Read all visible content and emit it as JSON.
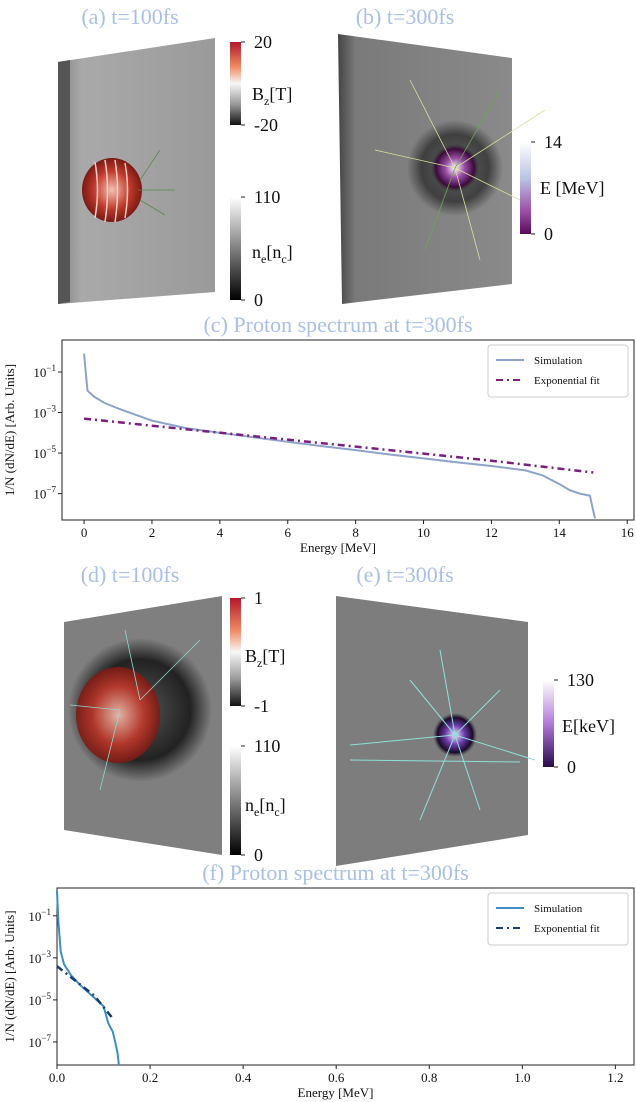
{
  "panels": [
    {
      "title": "(a) t=100fs",
      "colorbars": [
        {
          "label": [
            {
              "text": "B"
            },
            {
              "sub": "z"
            },
            {
              "text": "[T]"
            }
          ],
          "lim": [
            -20,
            20
          ],
          "ticks": [
            20,
            -20
          ]
        },
        {
          "label": [
            {
              "text": "n"
            },
            {
              "sub": "e"
            },
            {
              "text": "[n"
            },
            {
              "sub": "c"
            },
            {
              "text": "]"
            }
          ],
          "lim": [
            0,
            110
          ],
          "ticks": [
            110,
            0
          ]
        }
      ]
    },
    {
      "title": "(b) t=300fs",
      "colorbars": [
        {
          "label": [
            {
              "text": "E [MeV]"
            }
          ],
          "lim": [
            0,
            14
          ],
          "ticks": [
            14,
            0
          ]
        }
      ]
    },
    {
      "title": "(d) t=100fs",
      "colorbars": [
        {
          "label": [
            {
              "text": "B"
            },
            {
              "sub": "z"
            },
            {
              "text": "[T]"
            }
          ],
          "lim": [
            -1,
            1
          ],
          "ticks": [
            1,
            -1
          ]
        },
        {
          "label": [
            {
              "text": "n"
            },
            {
              "sub": "e"
            },
            {
              "text": "[n"
            },
            {
              "sub": "c"
            },
            {
              "text": "]"
            }
          ],
          "lim": [
            0,
            110
          ],
          "ticks": [
            110,
            0
          ]
        }
      ]
    },
    {
      "title": "(e) t=300fs",
      "colorbars": [
        {
          "label": [
            {
              "text": "E[keV]"
            }
          ],
          "lim": [
            0,
            130
          ],
          "ticks": [
            130,
            0
          ]
        }
      ]
    }
  ],
  "chart_data": [
    {
      "type": "line",
      "title": "(c) Proton spectrum at t=300fs",
      "xlabel": "Energy [MeV]",
      "ylabel": "1/N (dN/dE) [Arb. Units]",
      "yscale": "log",
      "legend": "upper right",
      "xlim": [
        -0.65,
        16.2
      ],
      "xticks": [
        0,
        2,
        4,
        6,
        8,
        10,
        12,
        14,
        16
      ],
      "ylim": [
        3.8,
        5e-09
      ],
      "yticks": [
        {
          "value": 0.1,
          "label": {
            "base": "10",
            "exp": "−1"
          }
        },
        {
          "value": 0.001,
          "label": {
            "base": "10",
            "exp": "−3"
          }
        },
        {
          "value": 1e-05,
          "label": {
            "base": "10",
            "exp": "−5"
          }
        },
        {
          "value": 1e-07,
          "label": {
            "base": "10",
            "exp": "−7"
          }
        }
      ],
      "series": [
        {
          "name": "Simulation",
          "color": "#8ea3c9",
          "linestyle": "solid",
          "x": [
            0,
            0.1,
            0.3,
            0.6,
            1,
            1.5,
            2,
            3,
            4,
            5,
            6,
            7,
            8,
            9,
            10,
            11,
            12,
            13,
            13.5,
            14,
            14.3,
            14.6,
            14.9,
            15.05
          ],
          "values": [
            0.8,
            0.012,
            0.006,
            0.003,
            0.0016,
            0.0008,
            0.0004,
            0.00017,
            0.0001,
            6e-05,
            3.6e-05,
            2.2e-05,
            1.4e-05,
            8.5e-06,
            5.5e-06,
            3.5e-06,
            2.3e-06,
            1.4e-06,
            8e-07,
            3e-07,
            1.5e-07,
            1e-07,
            8e-08,
            6e-09
          ]
        },
        {
          "name": "Exponential fit",
          "color": "#7b1f7e",
          "linestyle": "dashdot",
          "x": [
            0,
            3,
            6,
            9,
            12,
            15
          ],
          "values": [
            0.0005,
            0.00015,
            4.6e-05,
            1.4e-05,
            4.2e-06,
            1.1e-06
          ]
        }
      ]
    },
    {
      "type": "line",
      "title": "(f) Proton spectrum at t=300fs",
      "xlabel": "Energy [MeV]",
      "ylabel": "1/N (dN/dE) [Arb. Units]",
      "yscale": "log",
      "legend": "upper right",
      "xlim": [
        0,
        1.24
      ],
      "xticks": [
        {
          "value": 0,
          "label": "0.0"
        },
        0.2,
        0.4,
        0.6,
        0.8,
        {
          "value": 1,
          "label": "1.0"
        },
        1.2
      ],
      "ylim": [
        2.1,
        8e-09
      ],
      "yticks": [
        {
          "value": 0.1,
          "label": {
            "base": "10",
            "exp": "−1"
          }
        },
        {
          "value": 0.001,
          "label": {
            "base": "10",
            "exp": "−3"
          }
        },
        {
          "value": 1e-05,
          "label": {
            "base": "10",
            "exp": "−5"
          }
        },
        {
          "value": 1e-07,
          "label": {
            "base": "10",
            "exp": "−7"
          }
        }
      ],
      "series": [
        {
          "name": "Simulation",
          "color": "#3b8fc6",
          "linestyle": "solid",
          "x": [
            0,
            0.003,
            0.008,
            0.015,
            0.03,
            0.05,
            0.07,
            0.085,
            0.1,
            0.11,
            0.12,
            0.125,
            0.13,
            0.133
          ],
          "values": [
            1.5,
            0.05,
            0.002,
            0.0005,
            0.00015,
            5e-05,
            2e-05,
            1e-05,
            5e-06,
            8e-07,
            3e-07,
            1e-07,
            3e-08,
            8e-09
          ]
        },
        {
          "name": "Exponential fit",
          "color": "#1b3b6b",
          "linestyle": "dashdot",
          "x": [
            0,
            0.04,
            0.08,
            0.12
          ],
          "values": [
            0.0004,
            8e-05,
            1.6e-05,
            1.3e-06
          ]
        }
      ]
    }
  ]
}
